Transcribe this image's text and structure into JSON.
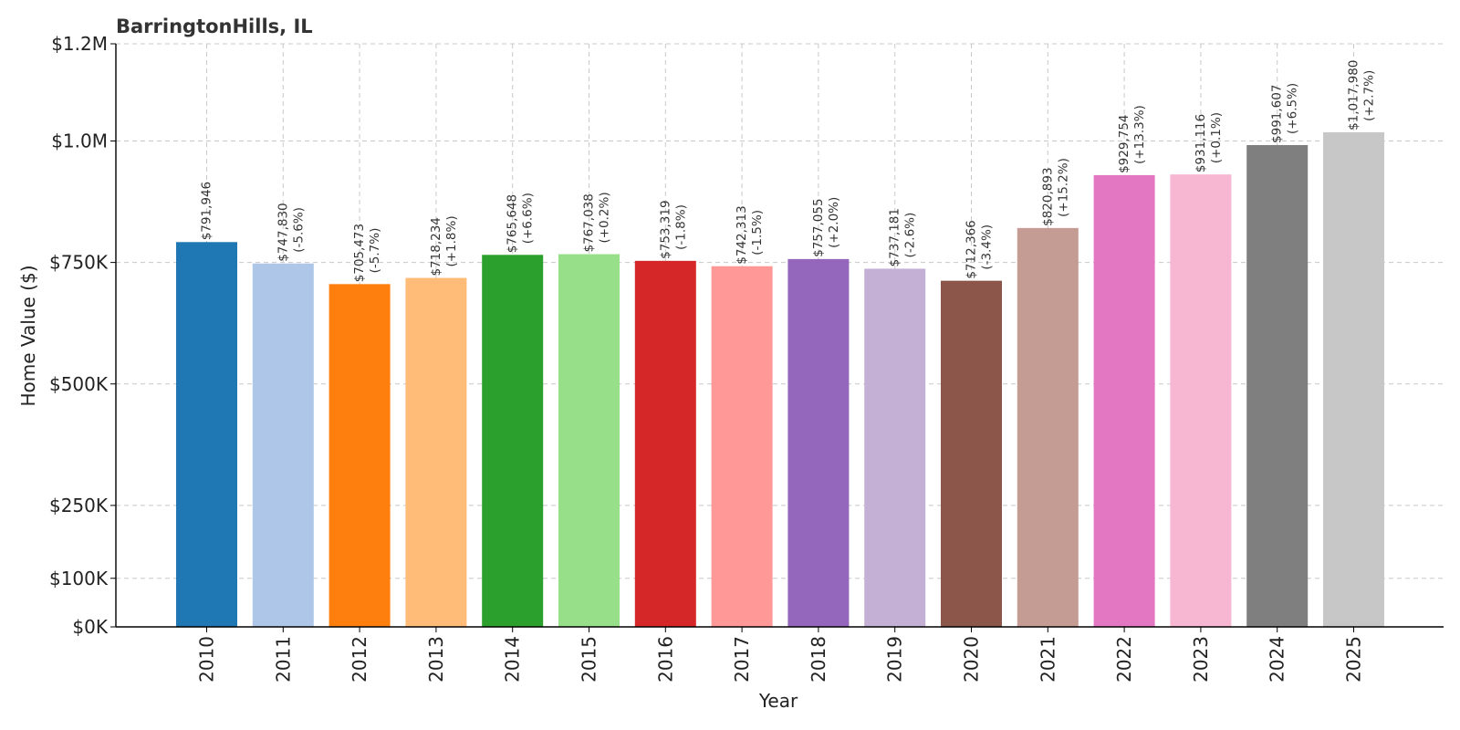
{
  "chart_data": {
    "type": "bar",
    "title": "BarringtonHills, IL",
    "xlabel": "Year",
    "ylabel": "Home Value ($)",
    "ylim": [
      0,
      1200000
    ],
    "yticks": [
      {
        "value": 0,
        "label": "$0K"
      },
      {
        "value": 100000,
        "label": "$100K"
      },
      {
        "value": 250000,
        "label": "$250K"
      },
      {
        "value": 500000,
        "label": "$500K"
      },
      {
        "value": 750000,
        "label": "$750K"
      },
      {
        "value": 1000000,
        "label": "$1.0M"
      },
      {
        "value": 1200000,
        "label": "$1.2M"
      }
    ],
    "grid": true,
    "categories": [
      "2010",
      "2011",
      "2012",
      "2013",
      "2014",
      "2015",
      "2016",
      "2017",
      "2018",
      "2019",
      "2020",
      "2021",
      "2022",
      "2023",
      "2024",
      "2025"
    ],
    "values": [
      791946,
      747830,
      705473,
      718234,
      765648,
      767038,
      753319,
      742313,
      757055,
      737181,
      712366,
      820893,
      929754,
      931116,
      991607,
      1017980
    ],
    "value_labels": [
      "$791,946",
      "$747,830",
      "$705,473",
      "$718,234",
      "$765,648",
      "$767,038",
      "$753,319",
      "$742,313",
      "$757,055",
      "$737,181",
      "$712,366",
      "$820,893",
      "$929,754",
      "$931,116",
      "$991,607",
      "$1,017,980"
    ],
    "change_labels": [
      "",
      "(-5.6%)",
      "(-5.7%)",
      "(+1.8%)",
      "(+6.6%)",
      "(+0.2%)",
      "(-1.8%)",
      "(-1.5%)",
      "(+2.0%)",
      "(-2.6%)",
      "(-3.4%)",
      "(+15.2%)",
      "(+13.3%)",
      "(+0.1%)",
      "(+6.5%)",
      "(+2.7%)"
    ],
    "colors": [
      "#1f77b4",
      "#aec7e8",
      "#ff7f0e",
      "#ffbb78",
      "#2ca02c",
      "#98df8a",
      "#d62728",
      "#ff9896",
      "#9467bd",
      "#c5b0d5",
      "#8c564b",
      "#c49c94",
      "#e377c2",
      "#f7b6d2",
      "#7f7f7f",
      "#c7c7c7"
    ]
  }
}
